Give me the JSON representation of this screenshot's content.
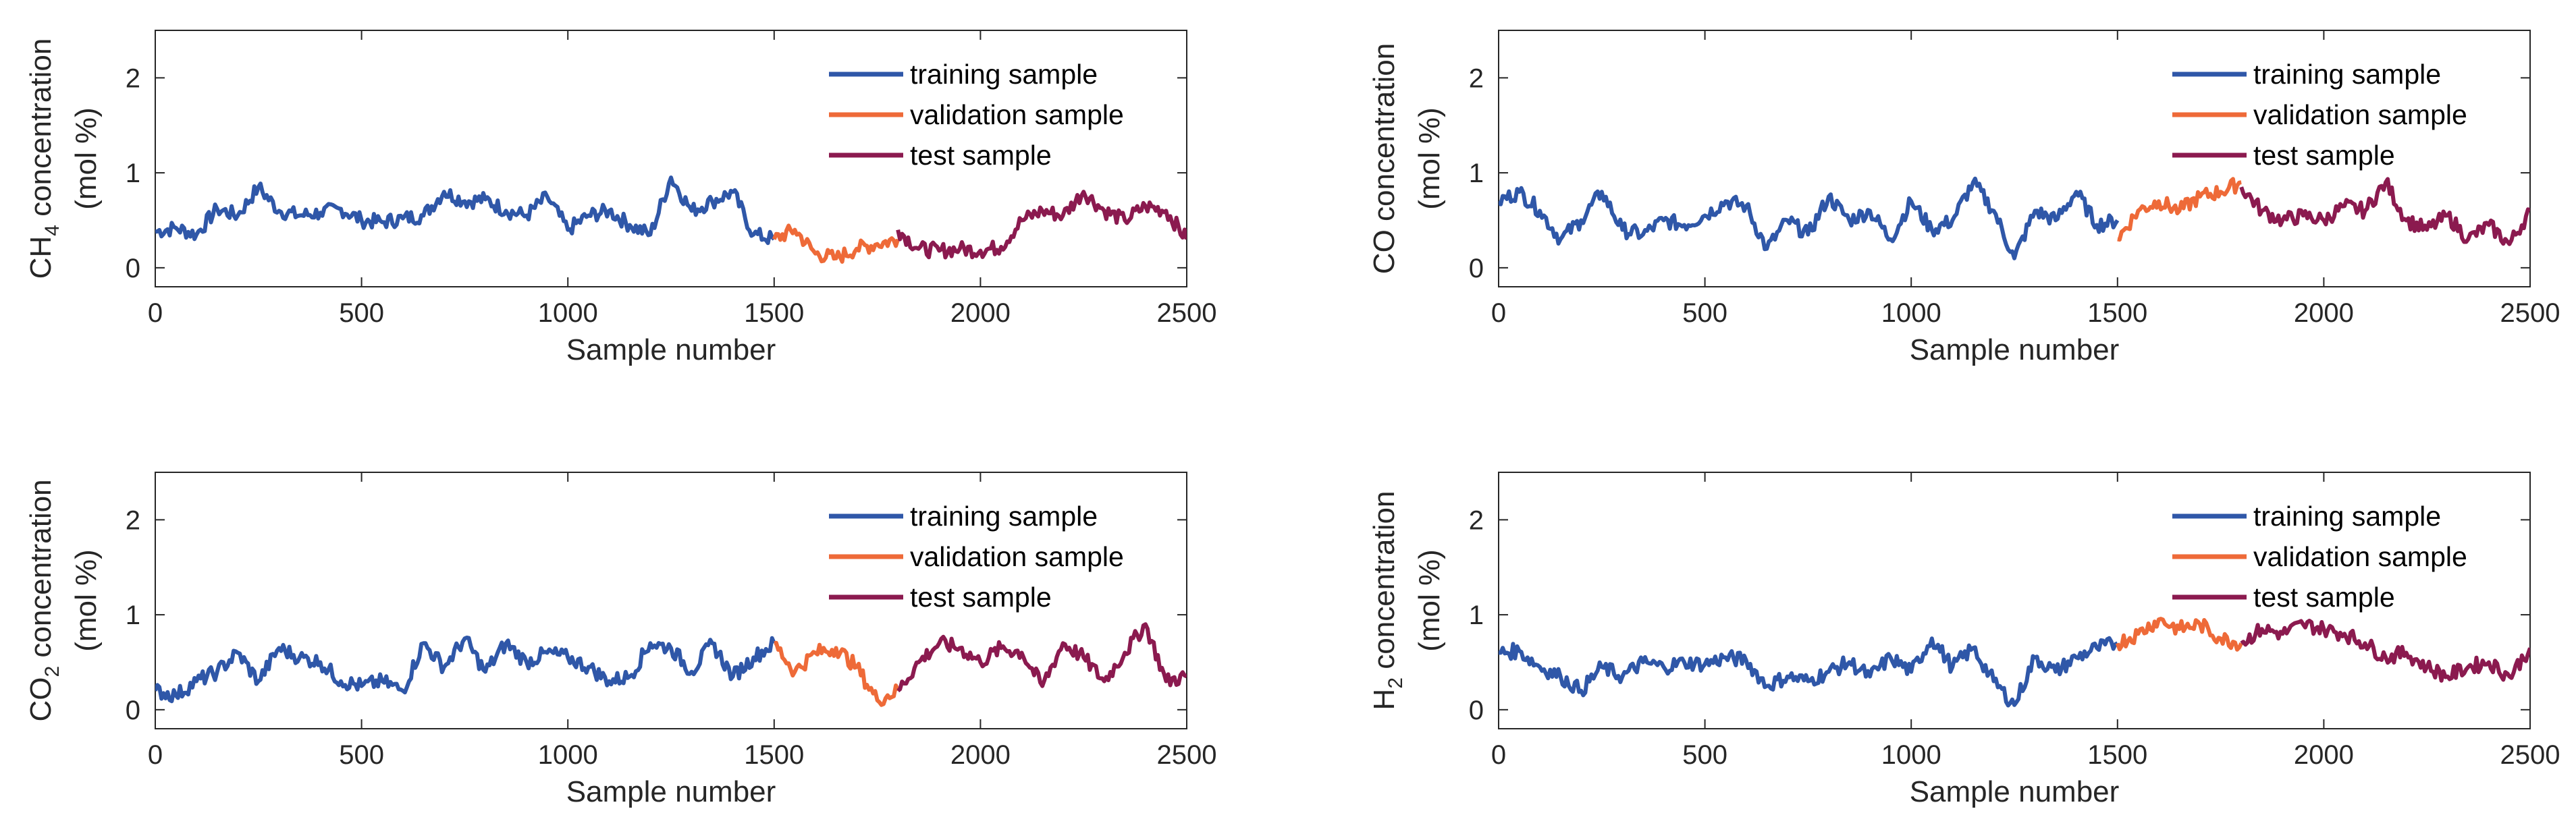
{
  "chart_data": [
    {
      "type": "line",
      "id": "ch4",
      "ylabel_prefix": "CH",
      "ylabel_sub": "4",
      "ylabel_suffix": " concentration",
      "ylabel_line2": "(mol %)",
      "xlabel": "Sample number",
      "xlim": [
        0,
        2500
      ],
      "ylim": [
        -0.2,
        2.5
      ],
      "xticks": [
        "0",
        "500",
        "1000",
        "1500",
        "2000",
        "2500"
      ],
      "yticks": [
        "0",
        "1",
        "2"
      ],
      "legend_position": "top-right",
      "legend": [
        "training sample",
        "validation sample",
        "test sample"
      ],
      "series": [
        {
          "name": "training sample",
          "color": "#2f57a8",
          "x": [
            0,
            50,
            100,
            150,
            200,
            250,
            300,
            350,
            400,
            450,
            500,
            550,
            600,
            650,
            700,
            750,
            800,
            850,
            900,
            950,
            1000,
            1050,
            1100,
            1150,
            1200,
            1250,
            1300,
            1350,
            1400,
            1450,
            1500
          ],
          "y": [
            0.38,
            0.42,
            0.35,
            0.62,
            0.55,
            0.85,
            0.6,
            0.55,
            0.58,
            0.62,
            0.5,
            0.48,
            0.52,
            0.55,
            0.8,
            0.7,
            0.72,
            0.6,
            0.55,
            0.75,
            0.4,
            0.55,
            0.6,
            0.45,
            0.35,
            0.95,
            0.6,
            0.7,
            0.8,
            0.35,
            0.3
          ]
        },
        {
          "name": "validation sample",
          "color": "#ee6a38",
          "x": [
            1500,
            1550,
            1600,
            1650,
            1700,
            1750,
            1800
          ],
          "y": [
            0.3,
            0.4,
            0.15,
            0.1,
            0.2,
            0.25,
            0.3
          ]
        },
        {
          "name": "test sample",
          "color": "#8b1a4f",
          "x": [
            1800,
            1850,
            1900,
            1950,
            2000,
            2050,
            2100,
            2150,
            2200,
            2250,
            2300,
            2350,
            2400,
            2450,
            2500
          ],
          "y": [
            0.4,
            0.2,
            0.18,
            0.2,
            0.18,
            0.22,
            0.5,
            0.6,
            0.55,
            0.8,
            0.6,
            0.5,
            0.65,
            0.6,
            0.3
          ]
        }
      ]
    },
    {
      "type": "line",
      "id": "co",
      "ylabel_prefix": "CO",
      "ylabel_sub": "",
      "ylabel_suffix": " concentration",
      "ylabel_line2": "(mol %)",
      "xlabel": "Sample number",
      "xlim": [
        0,
        2500
      ],
      "ylim": [
        -0.2,
        2.5
      ],
      "xticks": [
        "0",
        "500",
        "1000",
        "1500",
        "2000",
        "2500"
      ],
      "yticks": [
        "0",
        "1",
        "2"
      ],
      "legend_position": "top-right",
      "legend": [
        "training sample",
        "validation sample",
        "test sample"
      ],
      "series": [
        {
          "name": "training sample",
          "color": "#2f57a8",
          "x": [
            0,
            50,
            100,
            150,
            200,
            250,
            300,
            350,
            400,
            450,
            500,
            550,
            600,
            650,
            700,
            750,
            800,
            850,
            900,
            950,
            1000,
            1050,
            1100,
            1150,
            1200,
            1250,
            1300,
            1350,
            1400,
            1450,
            1500
          ],
          "y": [
            0.7,
            0.8,
            0.6,
            0.3,
            0.5,
            0.8,
            0.4,
            0.35,
            0.5,
            0.45,
            0.55,
            0.7,
            0.65,
            0.2,
            0.5,
            0.35,
            0.75,
            0.5,
            0.6,
            0.3,
            0.7,
            0.4,
            0.5,
            0.9,
            0.6,
            0.1,
            0.6,
            0.5,
            0.8,
            0.45,
            0.5
          ]
        },
        {
          "name": "validation sample",
          "color": "#ee6a38",
          "x": [
            1500,
            1550,
            1600,
            1650,
            1700,
            1750,
            1800
          ],
          "y": [
            0.3,
            0.6,
            0.7,
            0.6,
            0.75,
            0.8,
            0.9
          ]
        },
        {
          "name": "test sample",
          "color": "#8b1a4f",
          "x": [
            1800,
            1850,
            1900,
            1950,
            2000,
            2050,
            2100,
            2150,
            2200,
            2250,
            2300,
            2350,
            2400,
            2450,
            2500
          ],
          "y": [
            0.85,
            0.6,
            0.5,
            0.55,
            0.5,
            0.65,
            0.6,
            0.9,
            0.5,
            0.4,
            0.55,
            0.3,
            0.45,
            0.25,
            0.6
          ]
        }
      ]
    },
    {
      "type": "line",
      "id": "co2",
      "ylabel_prefix": "CO",
      "ylabel_sub": "2",
      "ylabel_suffix": " concentration",
      "ylabel_line2": "(mol %)",
      "xlabel": "Sample number",
      "xlim": [
        0,
        2500
      ],
      "ylim": [
        -0.2,
        2.5
      ],
      "xticks": [
        "0",
        "500",
        "1000",
        "1500",
        "2000",
        "2500"
      ],
      "yticks": [
        "0",
        "1",
        "2"
      ],
      "legend_position": "top-right",
      "legend": [
        "training sample",
        "validation sample",
        "test sample"
      ],
      "series": [
        {
          "name": "training sample",
          "color": "#2f57a8",
          "x": [
            0,
            50,
            100,
            150,
            200,
            250,
            300,
            350,
            400,
            450,
            500,
            550,
            600,
            650,
            700,
            750,
            800,
            850,
            900,
            950,
            1000,
            1050,
            1100,
            1150,
            1200,
            1250,
            1300,
            1350,
            1400,
            1450,
            1500
          ],
          "y": [
            0.2,
            0.15,
            0.3,
            0.4,
            0.6,
            0.3,
            0.65,
            0.55,
            0.5,
            0.3,
            0.25,
            0.3,
            0.2,
            0.7,
            0.45,
            0.75,
            0.4,
            0.7,
            0.5,
            0.6,
            0.55,
            0.45,
            0.3,
            0.35,
            0.7,
            0.65,
            0.4,
            0.7,
            0.35,
            0.55,
            0.7
          ]
        },
        {
          "name": "validation sample",
          "color": "#ee6a38",
          "x": [
            1500,
            1550,
            1600,
            1650,
            1700,
            1750,
            1800
          ],
          "y": [
            0.7,
            0.4,
            0.6,
            0.65,
            0.45,
            0.1,
            0.2
          ]
        },
        {
          "name": "test sample",
          "color": "#8b1a4f",
          "x": [
            1800,
            1850,
            1900,
            1950,
            2000,
            2050,
            2100,
            2150,
            2200,
            2250,
            2300,
            2350,
            2400,
            2450,
            2500
          ],
          "y": [
            0.2,
            0.5,
            0.7,
            0.65,
            0.5,
            0.65,
            0.6,
            0.25,
            0.7,
            0.55,
            0.3,
            0.6,
            0.9,
            0.3,
            0.35
          ]
        }
      ]
    },
    {
      "type": "line",
      "id": "h2",
      "ylabel_prefix": "H",
      "ylabel_sub": "2",
      "ylabel_suffix": " concentration",
      "ylabel_line2": "(mol %)",
      "xlabel": "Sample number",
      "xlim": [
        0,
        2500
      ],
      "ylim": [
        -0.2,
        2.5
      ],
      "xticks": [
        "0",
        "500",
        "1000",
        "1500",
        "2000",
        "2500"
      ],
      "yticks": [
        "0",
        "1",
        "2"
      ],
      "legend_position": "top-right",
      "legend": [
        "training sample",
        "validation sample",
        "test sample"
      ],
      "series": [
        {
          "name": "training sample",
          "color": "#2f57a8",
          "x": [
            0,
            50,
            100,
            150,
            200,
            250,
            300,
            350,
            400,
            450,
            500,
            550,
            600,
            650,
            700,
            750,
            800,
            850,
            900,
            950,
            1000,
            1050,
            1100,
            1150,
            1200,
            1250,
            1300,
            1350,
            1400,
            1450,
            1500
          ],
          "y": [
            0.6,
            0.62,
            0.45,
            0.35,
            0.2,
            0.45,
            0.35,
            0.5,
            0.45,
            0.5,
            0.48,
            0.55,
            0.52,
            0.25,
            0.35,
            0.3,
            0.4,
            0.5,
            0.35,
            0.55,
            0.4,
            0.75,
            0.45,
            0.65,
            0.3,
            0.05,
            0.55,
            0.4,
            0.55,
            0.65,
            0.7
          ]
        },
        {
          "name": "validation sample",
          "color": "#ee6a38",
          "x": [
            1500,
            1550,
            1600,
            1650,
            1700,
            1750,
            1800
          ],
          "y": [
            0.7,
            0.8,
            0.95,
            0.85,
            0.9,
            0.75,
            0.7
          ]
        },
        {
          "name": "test sample",
          "color": "#8b1a4f",
          "x": [
            1800,
            1850,
            1900,
            1950,
            2000,
            2050,
            2100,
            2150,
            2200,
            2250,
            2300,
            2350,
            2400,
            2450,
            2500
          ],
          "y": [
            0.7,
            0.85,
            0.8,
            0.9,
            0.85,
            0.8,
            0.7,
            0.55,
            0.6,
            0.45,
            0.35,
            0.45,
            0.5,
            0.35,
            0.65
          ]
        }
      ]
    }
  ]
}
